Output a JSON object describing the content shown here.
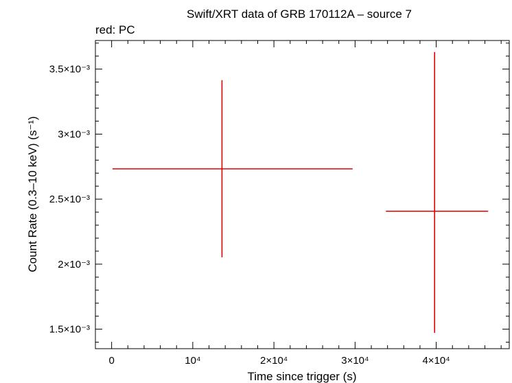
{
  "chart_data": {
    "type": "scatter",
    "title": "Swift/XRT data of GRB 170112A – source 7",
    "subtitle": "red: PC",
    "xlabel": "Time since trigger (s)",
    "ylabel": "Count Rate (0.3–10 keV) (s⁻¹)",
    "xlim": [
      -2000,
      49000
    ],
    "ylim": [
      0.00135,
      0.00372
    ],
    "x_ticks": [
      {
        "value": 0,
        "label": "0"
      },
      {
        "value": 10000,
        "label": "10⁴"
      },
      {
        "value": 20000,
        "label": "2×10⁴"
      },
      {
        "value": 30000,
        "label": "3×10⁴"
      },
      {
        "value": 40000,
        "label": "4×10⁴"
      }
    ],
    "y_ticks": [
      {
        "value": 0.0015,
        "label": "1.5×10⁻³"
      },
      {
        "value": 0.002,
        "label": "2×10⁻³"
      },
      {
        "value": 0.0025,
        "label": "2.5×10⁻³"
      },
      {
        "value": 0.003,
        "label": "3×10⁻³"
      },
      {
        "value": 0.0035,
        "label": "3.5×10⁻³"
      }
    ],
    "series": [
      {
        "color": "#e00000",
        "points": [
          {
            "x": 13600,
            "x_low": 100,
            "x_high": 29700,
            "y": 0.002733,
            "y_low": 0.002053,
            "y_high": 0.003415
          },
          {
            "x": 39800,
            "x_low": 33800,
            "x_high": 46400,
            "y": 0.002407,
            "y_low": 0.001472,
            "y_high": 0.003631
          }
        ]
      }
    ]
  }
}
